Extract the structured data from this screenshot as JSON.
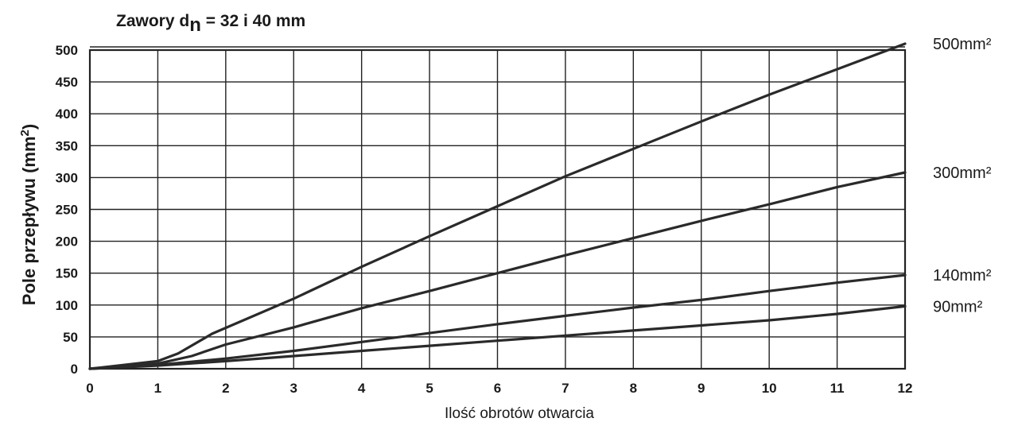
{
  "chart_data": {
    "type": "line",
    "title_prefix": "Zawory d",
    "title_sub": "n",
    "title_suffix": " = 32 i 40 mm",
    "xlabel": "Ilość obrotów otwarcia",
    "ylabel_prefix": "Pole przepływu (mm",
    "ylabel_sup": "2",
    "ylabel_suffix": ")",
    "xlim": [
      0,
      12
    ],
    "ylim": [
      0,
      500
    ],
    "x_ticks": [
      "0",
      "1",
      "2",
      "3",
      "4",
      "5",
      "6",
      "7",
      "8",
      "9",
      "10",
      "11",
      "12"
    ],
    "y_ticks": [
      "0",
      "50",
      "100",
      "150",
      "200",
      "250",
      "300",
      "350",
      "400",
      "450",
      "500"
    ],
    "grid": true,
    "series": [
      {
        "name": "500mm²",
        "x": [
          0,
          1,
          1.3,
          1.8,
          3,
          4,
          5,
          6,
          7,
          8,
          9,
          10,
          11,
          12
        ],
        "y": [
          0,
          12,
          24,
          55,
          110,
          160,
          208,
          255,
          302,
          345,
          388,
          430,
          470,
          510
        ]
      },
      {
        "name": "300mm²",
        "x": [
          0,
          1,
          1.5,
          2,
          3,
          4,
          5,
          6,
          7,
          8,
          9,
          10,
          11,
          12
        ],
        "y": [
          0,
          8,
          20,
          38,
          65,
          95,
          122,
          150,
          178,
          205,
          232,
          258,
          285,
          308
        ]
      },
      {
        "name": "140mm²",
        "x": [
          0,
          1,
          2,
          3,
          4,
          5,
          6,
          7,
          8,
          9,
          10,
          11,
          12
        ],
        "y": [
          0,
          6,
          16,
          28,
          42,
          56,
          70,
          83,
          96,
          108,
          122,
          135,
          147
        ]
      },
      {
        "name": "90mm²",
        "x": [
          0,
          1,
          2,
          3,
          4,
          5,
          6,
          7,
          8,
          9,
          10,
          11,
          12
        ],
        "y": [
          0,
          5,
          12,
          20,
          28,
          36,
          44,
          52,
          60,
          68,
          76,
          86,
          98
        ]
      }
    ]
  }
}
